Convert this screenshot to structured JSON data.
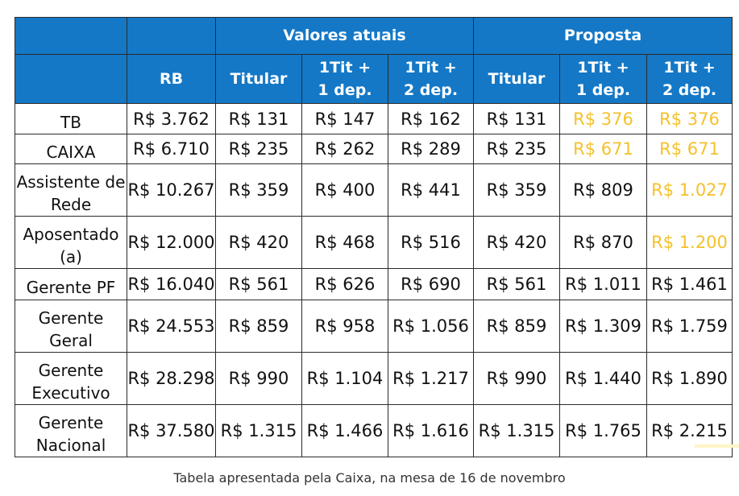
{
  "header": {
    "group_current": "Valores atuais",
    "group_proposal": "Proposta",
    "col_rb": "RB",
    "col_titular": "Titular",
    "col_1dep_line1": "1Tit +",
    "col_1dep_line2": "1 dep.",
    "col_2dep_line1": "1Tit +",
    "col_2dep_line2": "2 dep."
  },
  "rows": [
    {
      "label": "TB",
      "rb": "R$ 3.762",
      "cur": [
        "R$ 131",
        "R$ 147",
        "R$ 162"
      ],
      "prop": [
        "R$ 131",
        "R$ 376",
        "R$ 376"
      ],
      "highlight": [
        false,
        true,
        true
      ]
    },
    {
      "label": "CAIXA",
      "rb": "R$ 6.710",
      "cur": [
        "R$ 235",
        "R$ 262",
        "R$ 289"
      ],
      "prop": [
        "R$ 235",
        "R$ 671",
        "R$ 671"
      ],
      "highlight": [
        false,
        true,
        true
      ]
    },
    {
      "label": "Assistente de Rede",
      "rb": "R$ 10.267",
      "cur": [
        "R$ 359",
        "R$ 400",
        "R$ 441"
      ],
      "prop": [
        "R$ 359",
        "R$ 809",
        "R$ 1.027"
      ],
      "highlight": [
        false,
        false,
        true
      ]
    },
    {
      "label": "Aposentado (a)",
      "rb": "R$ 12.000",
      "cur": [
        "R$ 420",
        "R$ 468",
        "R$ 516"
      ],
      "prop": [
        "R$ 420",
        "R$ 870",
        "R$ 1.200"
      ],
      "highlight": [
        false,
        false,
        true
      ]
    },
    {
      "label": "Gerente PF",
      "rb": "R$ 16.040",
      "cur": [
        "R$ 561",
        "R$ 626",
        "R$ 690"
      ],
      "prop": [
        "R$ 561",
        "R$ 1.011",
        "R$ 1.461"
      ],
      "highlight": [
        false,
        false,
        false
      ]
    },
    {
      "label": "Gerente Geral",
      "rb": "R$ 24.553",
      "cur": [
        "R$ 859",
        "R$ 958",
        "R$ 1.056"
      ],
      "prop": [
        "R$ 859",
        "R$ 1.309",
        "R$ 1.759"
      ],
      "highlight": [
        false,
        false,
        false
      ]
    },
    {
      "label": "Gerente Executivo",
      "rb": "R$ 28.298",
      "cur": [
        "R$ 990",
        "R$ 1.104",
        "R$ 1.217"
      ],
      "prop": [
        "R$ 990",
        "R$ 1.440",
        "R$ 1.890"
      ],
      "highlight": [
        false,
        false,
        false
      ]
    },
    {
      "label": "Gerente Nacional",
      "rb": "R$ 37.580",
      "cur": [
        "R$ 1.315",
        "R$ 1.466",
        "R$ 1.616"
      ],
      "prop": [
        "R$ 1.315",
        "R$ 1.765",
        "R$ 2.215"
      ],
      "highlight": [
        false,
        false,
        false
      ]
    }
  ],
  "caption": "Tabela apresentada pela Caixa, na mesa de 16 de novembro",
  "colors": {
    "header_bg": "#1478c6",
    "highlight": "#f5c12a"
  }
}
